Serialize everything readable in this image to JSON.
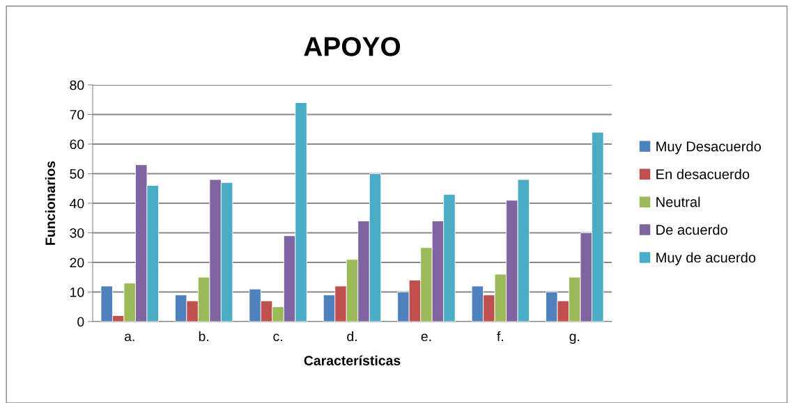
{
  "chart_data": {
    "type": "bar",
    "title": "APOYO",
    "xlabel": "Características",
    "ylabel": "Funcionarios",
    "categories": [
      "a.",
      "b.",
      "c.",
      "d.",
      "e.",
      "f.",
      "g."
    ],
    "series": [
      {
        "name": "Muy Desacuerdo",
        "color": "#4f81bd",
        "values": [
          12,
          9,
          11,
          9,
          10,
          12,
          10
        ]
      },
      {
        "name": "En desacuerdo",
        "color": "#c0504d",
        "values": [
          2,
          7,
          7,
          12,
          14,
          9,
          7
        ]
      },
      {
        "name": "Neutral",
        "color": "#9bbb59",
        "values": [
          13,
          15,
          5,
          21,
          25,
          16,
          15
        ]
      },
      {
        "name": "De acuerdo",
        "color": "#8064a2",
        "values": [
          53,
          48,
          29,
          34,
          34,
          41,
          30
        ]
      },
      {
        "name": "Muy de acuerdo",
        "color": "#4bacc6",
        "values": [
          46,
          47,
          74,
          50,
          43,
          48,
          64
        ]
      }
    ],
    "ylim": [
      0,
      80
    ],
    "yticks": [
      0,
      10,
      20,
      30,
      40,
      50,
      60,
      70,
      80
    ],
    "grid": "y",
    "legend": "right"
  }
}
